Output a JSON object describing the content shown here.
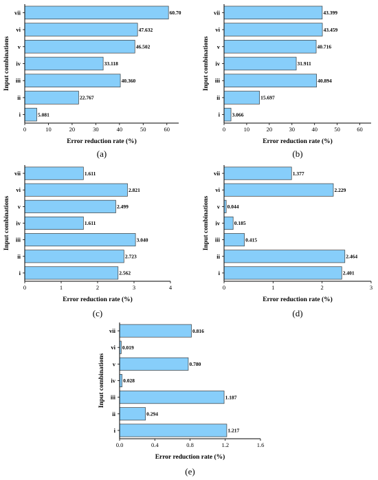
{
  "chart_data": [
    {
      "type": "bar",
      "orientation": "horizontal",
      "panel": "a",
      "caption": "(a)",
      "categories": [
        "i",
        "ii",
        "iii",
        "iv",
        "v",
        "vi",
        "vii"
      ],
      "values": [
        5.081,
        22.767,
        40.36,
        33.118,
        46.502,
        47.632,
        60.7
      ],
      "value_labels": [
        "5.081",
        "22.767",
        "40.360",
        "33.118",
        "46.502",
        "47.632",
        "60.70"
      ],
      "xlabel": "Error reduction rate (%)",
      "ylabel": "Input combinations",
      "xlim": [
        0,
        65
      ],
      "xticks": [
        0,
        10,
        20,
        30,
        40,
        50,
        60
      ],
      "xtick_labels": [
        "0",
        "10",
        "20",
        "30",
        "40",
        "50",
        "60"
      ]
    },
    {
      "type": "bar",
      "orientation": "horizontal",
      "panel": "b",
      "caption": "(b)",
      "categories": [
        "i",
        "ii",
        "iii",
        "iv",
        "v",
        "vi",
        "vii"
      ],
      "values": [
        3.066,
        15.697,
        40.894,
        31.911,
        40.716,
        43.459,
        43.399
      ],
      "value_labels": [
        "3.066",
        "15.697",
        "40.894",
        "31.911",
        "40.716",
        "43.459",
        "43.399"
      ],
      "xlabel": "Error reduction rate (%)",
      "ylabel": "Input combinations",
      "xlim": [
        0,
        65
      ],
      "xticks": [
        0,
        10,
        20,
        30,
        40,
        50,
        60
      ],
      "xtick_labels": [
        "0",
        "10",
        "20",
        "30",
        "40",
        "50",
        "60"
      ]
    },
    {
      "type": "bar",
      "orientation": "horizontal",
      "panel": "c",
      "caption": "(c)",
      "categories": [
        "i",
        "ii",
        "iii",
        "iv",
        "v",
        "vi",
        "vii"
      ],
      "values": [
        2.562,
        2.723,
        3.04,
        1.611,
        2.499,
        2.821,
        1.611
      ],
      "value_labels": [
        "2.562",
        "2.723",
        "3.040",
        "1.611",
        "2.499",
        "2.821",
        "1.611"
      ],
      "xlabel": "Error reduction rate (%)",
      "ylabel": "Input combinations",
      "xlim": [
        0,
        4
      ],
      "xticks": [
        0,
        1,
        2,
        3,
        4
      ],
      "xtick_labels": [
        "0",
        "1",
        "2",
        "3",
        "4"
      ]
    },
    {
      "type": "bar",
      "orientation": "horizontal",
      "panel": "d",
      "caption": "(d)",
      "categories": [
        "i",
        "ii",
        "iii",
        "iv",
        "v",
        "vi",
        "vii"
      ],
      "values": [
        2.401,
        2.464,
        0.415,
        0.185,
        0.044,
        2.229,
        1.377
      ],
      "value_labels": [
        "2.401",
        "2.464",
        "0.415",
        "0.185",
        "0.044",
        "2.229",
        "1.377"
      ],
      "xlabel": "Error reduction rate (%)",
      "ylabel": "Input combinations",
      "xlim": [
        0,
        3
      ],
      "xticks": [
        0,
        1,
        2,
        3
      ],
      "xtick_labels": [
        "0",
        "1",
        "2",
        "3"
      ]
    },
    {
      "type": "bar",
      "orientation": "horizontal",
      "panel": "e",
      "caption": "(e)",
      "categories": [
        "i",
        "ii",
        "iii",
        "iv",
        "v",
        "vi",
        "vii"
      ],
      "values": [
        1.217,
        0.294,
        1.187,
        0.028,
        0.78,
        0.019,
        0.816
      ],
      "value_labels": [
        "1.217",
        "0.294",
        "1.187",
        "0.028",
        "0.780",
        "0.019",
        "0.816"
      ],
      "xlabel": "Error reduction rate (%)",
      "ylabel": "Input combinations",
      "xlim": [
        0,
        1.6
      ],
      "xticks": [
        0,
        0.4,
        0.8,
        1.2,
        1.6
      ],
      "xtick_labels": [
        "0.0",
        "0.4",
        "0.8",
        "1.2",
        "1.6"
      ]
    }
  ],
  "colors": {
    "bar_fill": "#87cefa",
    "bar_stroke": "#3a3a3a",
    "axis": "#000000"
  }
}
